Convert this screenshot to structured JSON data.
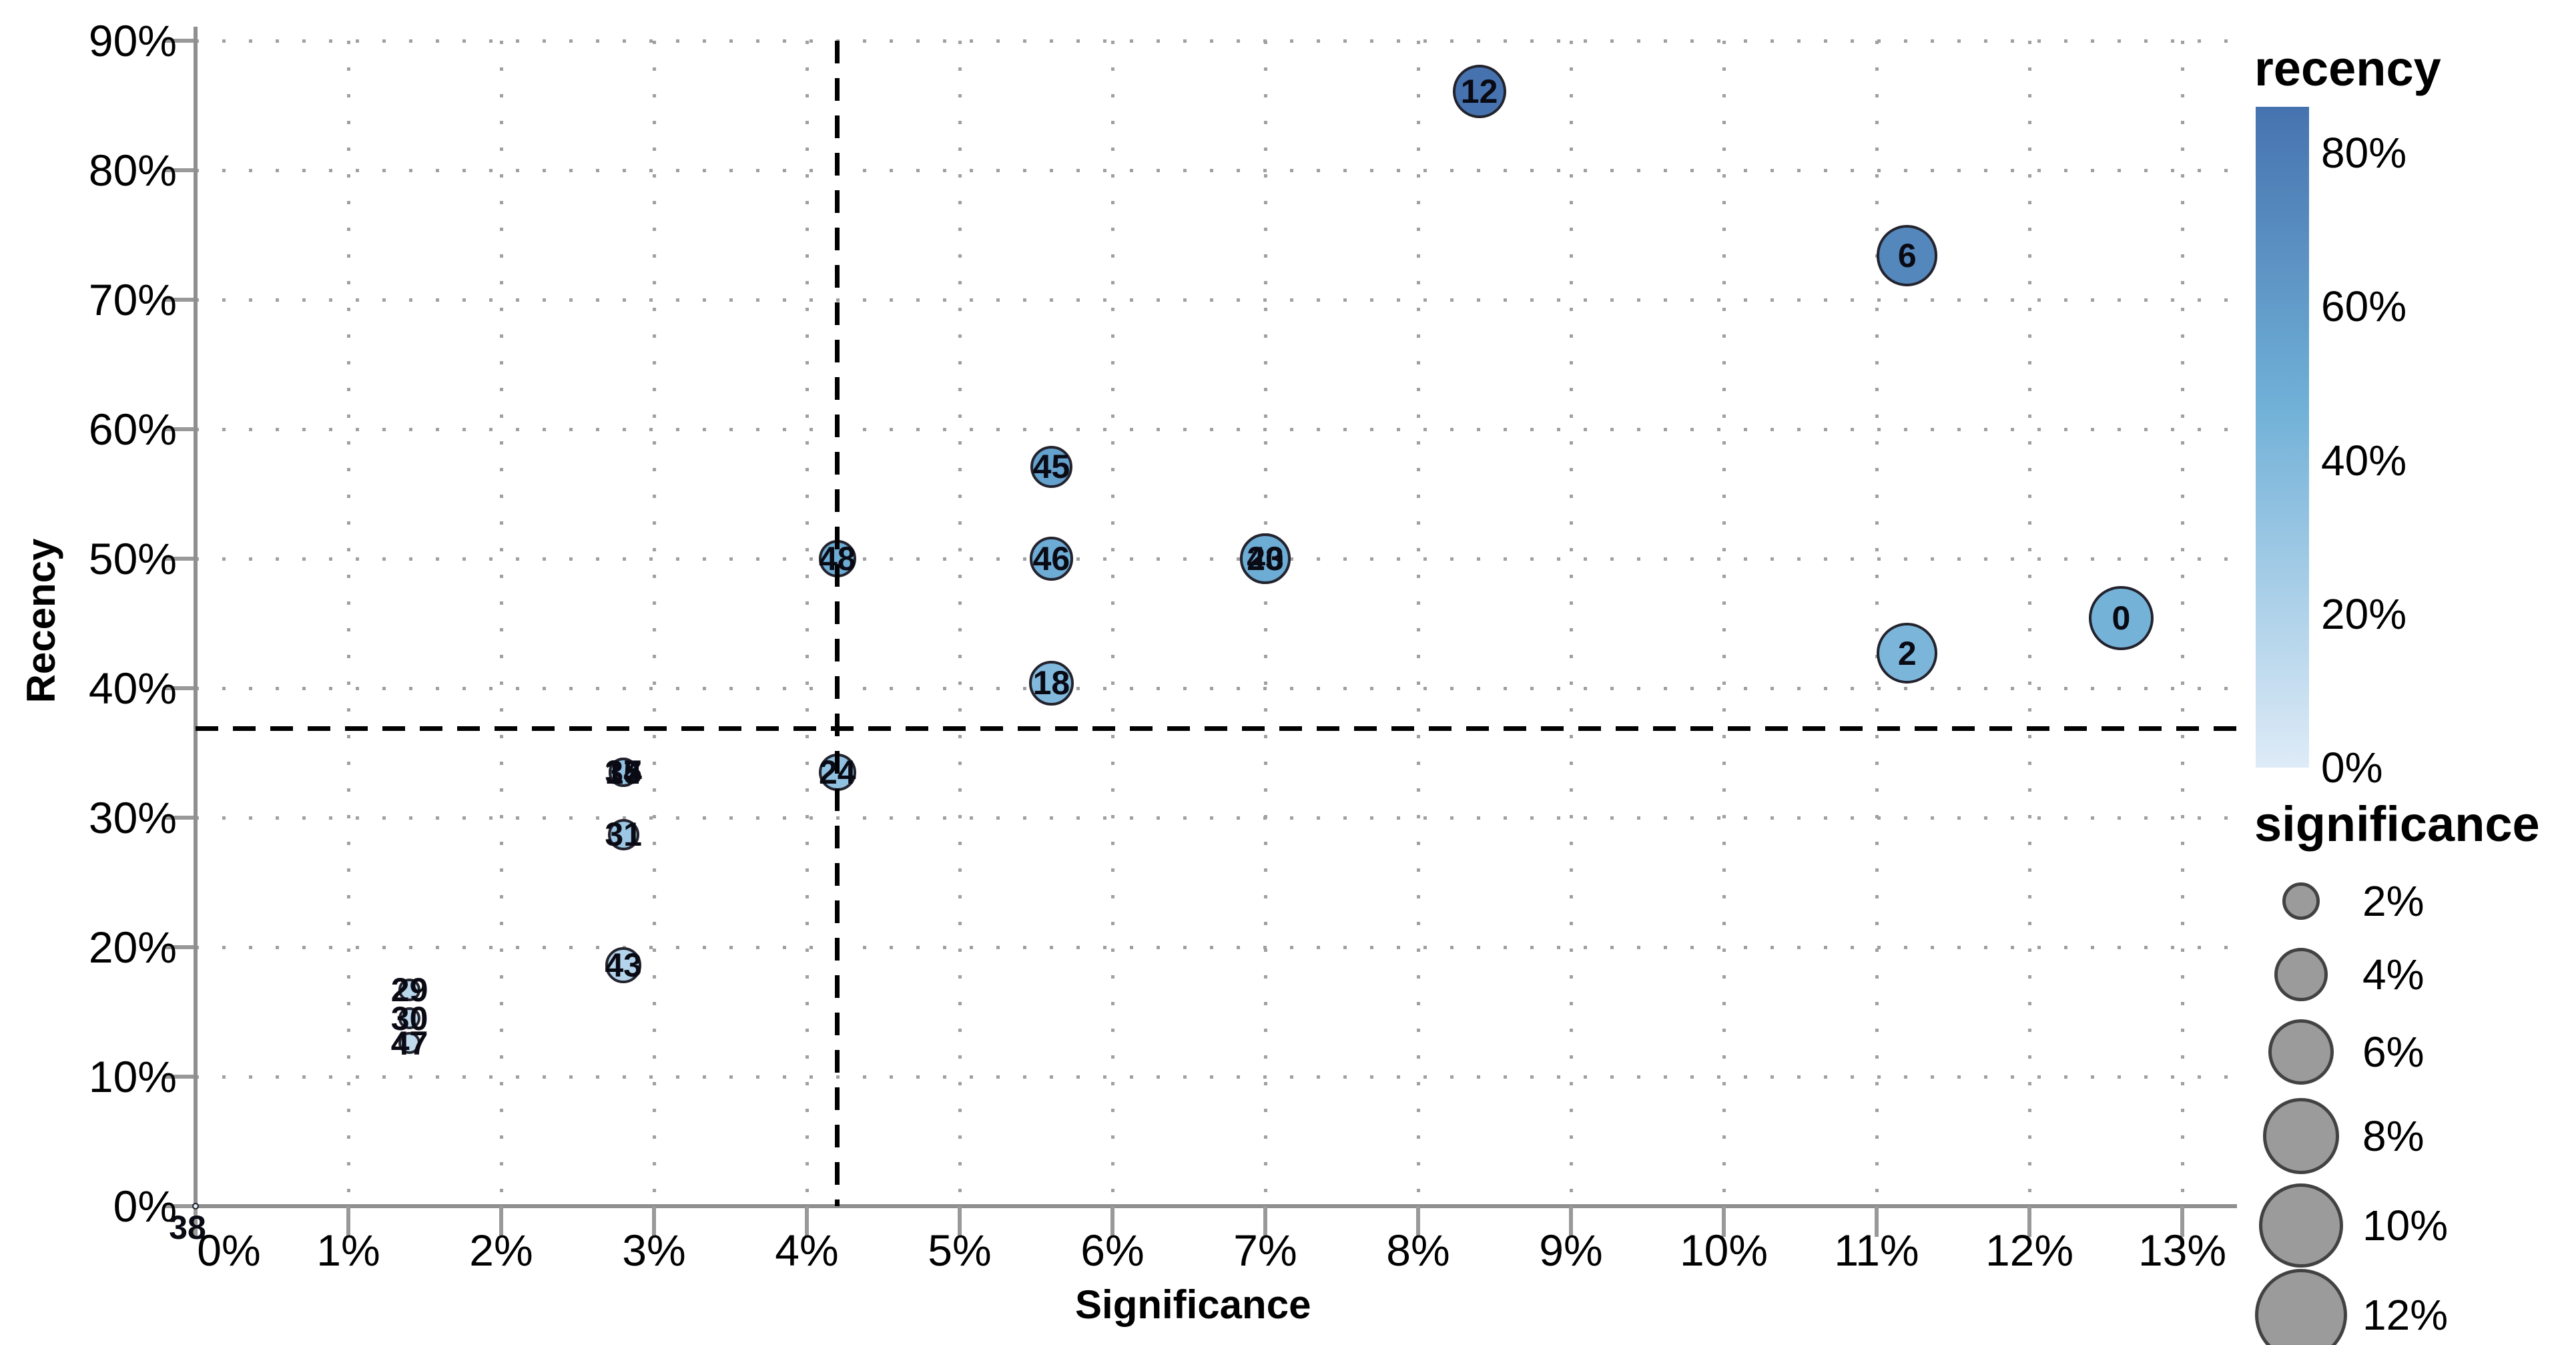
{
  "chart_data": {
    "type": "scatter",
    "title": "",
    "xlabel": "Significance",
    "ylabel": "Recency",
    "xlim": [
      0,
      13.4
    ],
    "ylim": [
      0,
      91
    ],
    "grid": "dotted",
    "x_tick_values": [
      0,
      1,
      2,
      3,
      4,
      5,
      6,
      7,
      8,
      9,
      10,
      11,
      12,
      13
    ],
    "x_tick_labels": [
      "0%",
      "1%",
      "2%",
      "3%",
      "4%",
      "5%",
      "6%",
      "7%",
      "8%",
      "9%",
      "10%",
      "11%",
      "12%",
      "13%"
    ],
    "y_tick_values": [
      0,
      10,
      20,
      30,
      40,
      50,
      60,
      70,
      80,
      90
    ],
    "y_tick_labels": [
      "0%",
      "10%",
      "20%",
      "30%",
      "40%",
      "50%",
      "60%",
      "70%",
      "80%",
      "90%"
    ],
    "crosshair": {
      "x": 4.2,
      "y": 36.9
    },
    "points": [
      {
        "label": "0",
        "significance": 12.6,
        "recency": 45.4,
        "size": 5.8
      },
      {
        "label": "2",
        "significance": 11.2,
        "recency": 42.7,
        "size": 5.2
      },
      {
        "label": "6",
        "significance": 11.2,
        "recency": 73.4,
        "size": 5.2
      },
      {
        "label": "12",
        "significance": 8.4,
        "recency": 86.1,
        "size": 4.0
      },
      {
        "label": "15",
        "significance": 2.8,
        "recency": 33.5,
        "size": 1.2
      },
      {
        "label": "17",
        "significance": 2.8,
        "recency": 33.5,
        "size": 1.2
      },
      {
        "label": "18",
        "significance": 5.6,
        "recency": 40.4,
        "size": 2.8
      },
      {
        "label": "23",
        "significance": 7.0,
        "recency": 50.0,
        "size": 3.6
      },
      {
        "label": "24",
        "significance": 4.2,
        "recency": 33.5,
        "size": 2.0
      },
      {
        "label": "29",
        "significance": 1.4,
        "recency": 16.7,
        "size": 0.7
      },
      {
        "label": "30",
        "significance": 1.4,
        "recency": 14.5,
        "size": 0.7
      },
      {
        "label": "31",
        "significance": 2.8,
        "recency": 28.7,
        "size": 1.4
      },
      {
        "label": "34",
        "significance": 2.8,
        "recency": 33.5,
        "size": 1.2
      },
      {
        "label": "38",
        "significance": 0.0,
        "recency": 0.0,
        "size": 0.06,
        "label_offset": [
          -12,
          32
        ]
      },
      {
        "label": "40",
        "significance": 7.0,
        "recency": 50.0,
        "size": 3.6
      },
      {
        "label": "43",
        "significance": 2.8,
        "recency": 18.6,
        "size": 1.8
      },
      {
        "label": "45",
        "significance": 5.6,
        "recency": 57.1,
        "size": 2.5
      },
      {
        "label": "46",
        "significance": 5.6,
        "recency": 50.0,
        "size": 2.7
      },
      {
        "label": "47",
        "significance": 1.4,
        "recency": 12.6,
        "size": 0.7
      },
      {
        "label": "48",
        "significance": 4.2,
        "recency": 50.0,
        "size": 2.0
      }
    ],
    "color_scale": {
      "domain_max": 86,
      "stops": [
        [
          0,
          [
            222,
            235,
            247
          ]
        ],
        [
          0.55,
          [
            112,
            176,
            215
          ]
        ],
        [
          1,
          [
            70,
            115,
            175
          ]
        ]
      ],
      "low_hex": "#deebf7",
      "mid_hex": "#70b0d7",
      "high_hex": "#4673af"
    },
    "legend_recency": {
      "title": "recency",
      "ticks": [
        {
          "label": "80%",
          "value": 80
        },
        {
          "label": "60%",
          "value": 60
        },
        {
          "label": "40%",
          "value": 40
        },
        {
          "label": "20%",
          "value": 20
        },
        {
          "label": "0%",
          "value": 0
        }
      ]
    },
    "legend_significance": {
      "title": "significance",
      "entries": [
        {
          "label": "2%",
          "value": 2
        },
        {
          "label": "4%",
          "value": 4
        },
        {
          "label": "6%",
          "value": 6
        },
        {
          "label": "8%",
          "value": 8
        },
        {
          "label": "10%",
          "value": 10
        },
        {
          "label": "12%",
          "value": 12
        }
      ]
    }
  }
}
